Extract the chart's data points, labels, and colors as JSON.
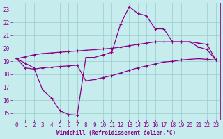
{
  "xlabel": "Windchill (Refroidissement éolien,°C)",
  "background_color": "#c6ecee",
  "line_color": "#880088",
  "grid_color": "#99cccc",
  "xlim": [
    -0.5,
    23.5
  ],
  "ylim": [
    14.5,
    23.5
  ],
  "yticks": [
    15,
    16,
    17,
    18,
    19,
    20,
    21,
    22,
    23
  ],
  "xticks": [
    0,
    1,
    2,
    3,
    4,
    5,
    6,
    7,
    8,
    9,
    10,
    11,
    12,
    13,
    14,
    15,
    16,
    17,
    18,
    19,
    20,
    21,
    22,
    23
  ],
  "line1_x": [
    0,
    1,
    2,
    3,
    4,
    5,
    6,
    7,
    8,
    9,
    10,
    11,
    12,
    13,
    14,
    15,
    16,
    17,
    18,
    19,
    20,
    21,
    22,
    23
  ],
  "line1_y": [
    19.2,
    18.85,
    18.5,
    16.8,
    16.2,
    15.2,
    14.9,
    14.85,
    19.3,
    19.3,
    19.5,
    19.7,
    21.85,
    23.2,
    22.7,
    22.5,
    21.5,
    21.5,
    20.5,
    20.5,
    20.5,
    20.1,
    19.9,
    19.1
  ],
  "line2_x": [
    0,
    1,
    2,
    3,
    4,
    5,
    6,
    7,
    8,
    9,
    10,
    11,
    12,
    13,
    14,
    15,
    16,
    17,
    18,
    19,
    20,
    21,
    22,
    23
  ],
  "line2_y": [
    19.2,
    19.35,
    19.5,
    19.6,
    19.65,
    19.7,
    19.75,
    19.8,
    19.85,
    19.9,
    19.95,
    20.0,
    20.1,
    20.2,
    20.3,
    20.4,
    20.5,
    20.5,
    20.5,
    20.5,
    20.5,
    20.4,
    20.3,
    19.1
  ],
  "line3_x": [
    0,
    1,
    2,
    3,
    4,
    5,
    6,
    7,
    8,
    9,
    10,
    11,
    12,
    13,
    14,
    15,
    16,
    17,
    18,
    19,
    20,
    21,
    22,
    23
  ],
  "line3_y": [
    19.2,
    18.5,
    18.4,
    18.5,
    18.55,
    18.6,
    18.65,
    18.7,
    17.5,
    17.6,
    17.75,
    17.9,
    18.1,
    18.3,
    18.5,
    18.65,
    18.8,
    18.95,
    19.0,
    19.1,
    19.15,
    19.2,
    19.15,
    19.1
  ]
}
